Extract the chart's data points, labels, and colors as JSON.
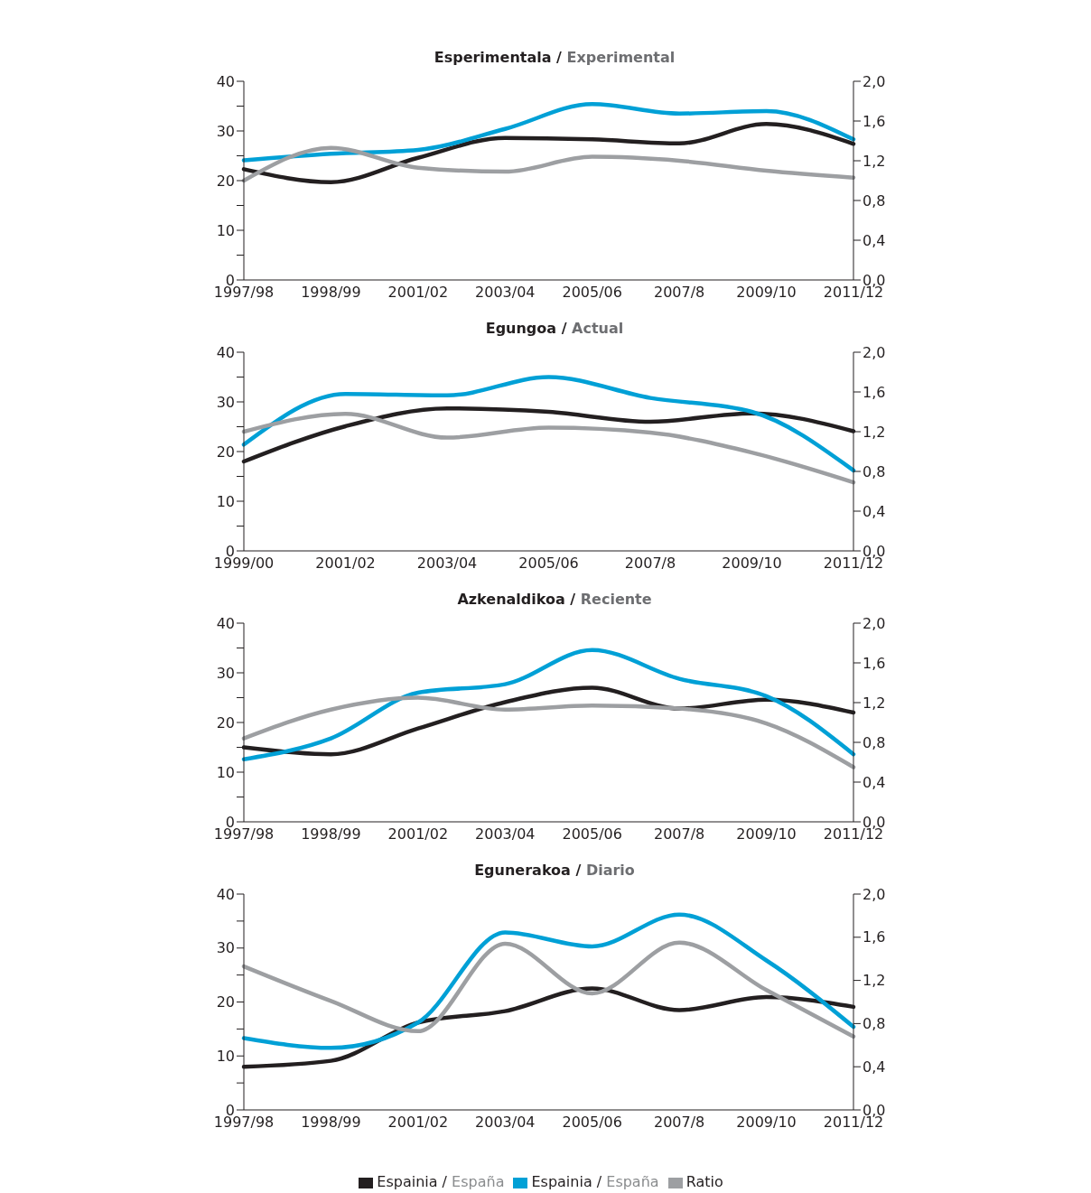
{
  "chart_data": [
    {
      "type": "line",
      "title": "Esperimentala / Experimental",
      "categories": [
        "1997/98",
        "1998/99",
        "2001/02",
        "2003/04",
        "2005/06",
        "2007/8",
        "2009/10",
        "2011/12"
      ],
      "series": [
        {
          "color": "#231f20",
          "values": [
            22.3,
            19.7,
            24.6,
            28.6,
            28.3,
            27.5,
            31.4,
            27.4
          ]
        },
        {
          "color": "#00a0d6",
          "values": [
            24.1,
            25.4,
            26.2,
            30.4,
            35.4,
            33.5,
            34.0,
            28.3
          ]
        },
        {
          "color": "#9d9fa2",
          "axis": "y2",
          "values": [
            1.0,
            1.33,
            1.13,
            1.09,
            1.24,
            1.2,
            1.1,
            1.03
          ]
        }
      ],
      "ylim": [
        0,
        40
      ],
      "yticks": [
        0,
        {
          "value": 5,
          "label": null
        },
        10,
        {
          "value": 15,
          "label": null
        },
        20,
        {
          "value": 25,
          "label": null
        },
        30,
        {
          "value": 35,
          "label": null
        },
        40
      ],
      "y2lim": [
        0,
        2
      ],
      "y2ticks": [
        {
          "value": 0,
          "label": "0,0"
        },
        {
          "value": 0.4,
          "label": "0,4"
        },
        {
          "value": 0.8,
          "label": "0,8"
        },
        {
          "value": 1.2,
          "label": "1,2"
        },
        {
          "value": 1.6,
          "label": "1,6"
        },
        {
          "value": 2,
          "label": "2,0"
        }
      ],
      "grid": false,
      "legend": false
    },
    {
      "type": "line",
      "title": "Egungoa / Actual",
      "categories": [
        "1999/00",
        "2001/02",
        "2003/04",
        "2005/06",
        "2007/8",
        "2009/10",
        "2011/12"
      ],
      "series": [
        {
          "color": "#231f20",
          "values": [
            18.0,
            25.1,
            28.7,
            28.0,
            26.0,
            27.7,
            24.1
          ]
        },
        {
          "color": "#00a0d6",
          "values": [
            21.4,
            31.6,
            31.3,
            35.0,
            30.8,
            28.0,
            16.2
          ]
        },
        {
          "color": "#9d9fa2",
          "axis": "y2",
          "values": [
            1.2,
            1.38,
            1.14,
            1.24,
            1.19,
            0.99,
            0.69
          ]
        }
      ],
      "ylim": [
        0,
        40
      ],
      "yticks": [
        0,
        {
          "value": 5,
          "label": null
        },
        10,
        {
          "value": 15,
          "label": null
        },
        20,
        {
          "value": 25,
          "label": null
        },
        30,
        {
          "value": 35,
          "label": null
        },
        40
      ],
      "y2lim": [
        0,
        2
      ],
      "y2ticks": [
        {
          "value": 0,
          "label": "0,0"
        },
        {
          "value": 0.4,
          "label": "0,4"
        },
        {
          "value": 0.8,
          "label": "0,8"
        },
        {
          "value": 1.2,
          "label": "1,2"
        },
        {
          "value": 1.6,
          "label": "1,6"
        },
        {
          "value": 2,
          "label": "2,0"
        }
      ],
      "grid": false,
      "legend": false
    },
    {
      "type": "line",
      "title": "Azkenaldikoa / Reciente",
      "categories": [
        "1997/98",
        "1998/99",
        "2001/02",
        "2003/04",
        "2005/06",
        "2007/8",
        "2009/10",
        "2011/12"
      ],
      "series": [
        {
          "color": "#231f20",
          "values": [
            15.0,
            13.6,
            18.8,
            24.1,
            27.0,
            22.8,
            24.6,
            22.0
          ]
        },
        {
          "color": "#00a0d6",
          "values": [
            12.6,
            16.8,
            26.0,
            27.7,
            34.6,
            28.8,
            25.3,
            13.6
          ]
        },
        {
          "color": "#9d9fa2",
          "axis": "y2",
          "values": [
            0.84,
            1.13,
            1.25,
            1.13,
            1.17,
            1.14,
            0.99,
            0.55
          ]
        }
      ],
      "ylim": [
        0,
        40
      ],
      "yticks": [
        0,
        {
          "value": 5,
          "label": null
        },
        10,
        {
          "value": 15,
          "label": null
        },
        20,
        {
          "value": 25,
          "label": null
        },
        30,
        {
          "value": 35,
          "label": null
        },
        40
      ],
      "y2lim": [
        0,
        2
      ],
      "y2ticks": [
        {
          "value": 0,
          "label": "0,0"
        },
        {
          "value": 0.4,
          "label": "0,4"
        },
        {
          "value": 0.8,
          "label": "0,8"
        },
        {
          "value": 1.2,
          "label": "1,2"
        },
        {
          "value": 1.6,
          "label": "1,6"
        },
        {
          "value": 2,
          "label": "2,0"
        }
      ],
      "grid": false,
      "legend": false
    },
    {
      "type": "line",
      "title": "Egunerakoa / Diario",
      "categories": [
        "1997/98",
        "1998/99",
        "2001/02",
        "2003/04",
        "2005/06",
        "2007/8",
        "2009/10",
        "2011/12"
      ],
      "series": [
        {
          "name": "Espainia / España",
          "color": "#231f20",
          "values": [
            8.0,
            9.1,
            16.2,
            18.3,
            22.5,
            18.5,
            20.9,
            19.1
          ]
        },
        {
          "name": "Espainia / España",
          "color": "#00a0d6",
          "values": [
            13.3,
            11.5,
            16.2,
            32.9,
            30.3,
            36.2,
            27.7,
            15.4
          ]
        },
        {
          "name": "Ratio",
          "color": "#9d9fa2",
          "axis": "y2",
          "values": [
            1.33,
            1.01,
            0.73,
            1.54,
            1.08,
            1.55,
            1.11,
            0.68
          ]
        }
      ],
      "ylim": [
        0,
        40
      ],
      "yticks": [
        0,
        {
          "value": 5,
          "label": null
        },
        10,
        {
          "value": 15,
          "label": null
        },
        20,
        {
          "value": 25,
          "label": null
        },
        30,
        {
          "value": 35,
          "label": null
        },
        40
      ],
      "y2lim": [
        0,
        2
      ],
      "y2ticks": [
        {
          "value": 0,
          "label": "0,0"
        },
        {
          "value": 0.4,
          "label": "0,4"
        },
        {
          "value": 0.8,
          "label": "0,8"
        },
        {
          "value": 1.2,
          "label": "1,2"
        },
        {
          "value": 1.6,
          "label": "1,6"
        },
        {
          "value": 2,
          "label": "2,0"
        }
      ],
      "grid": false,
      "legend": "bottom"
    }
  ]
}
